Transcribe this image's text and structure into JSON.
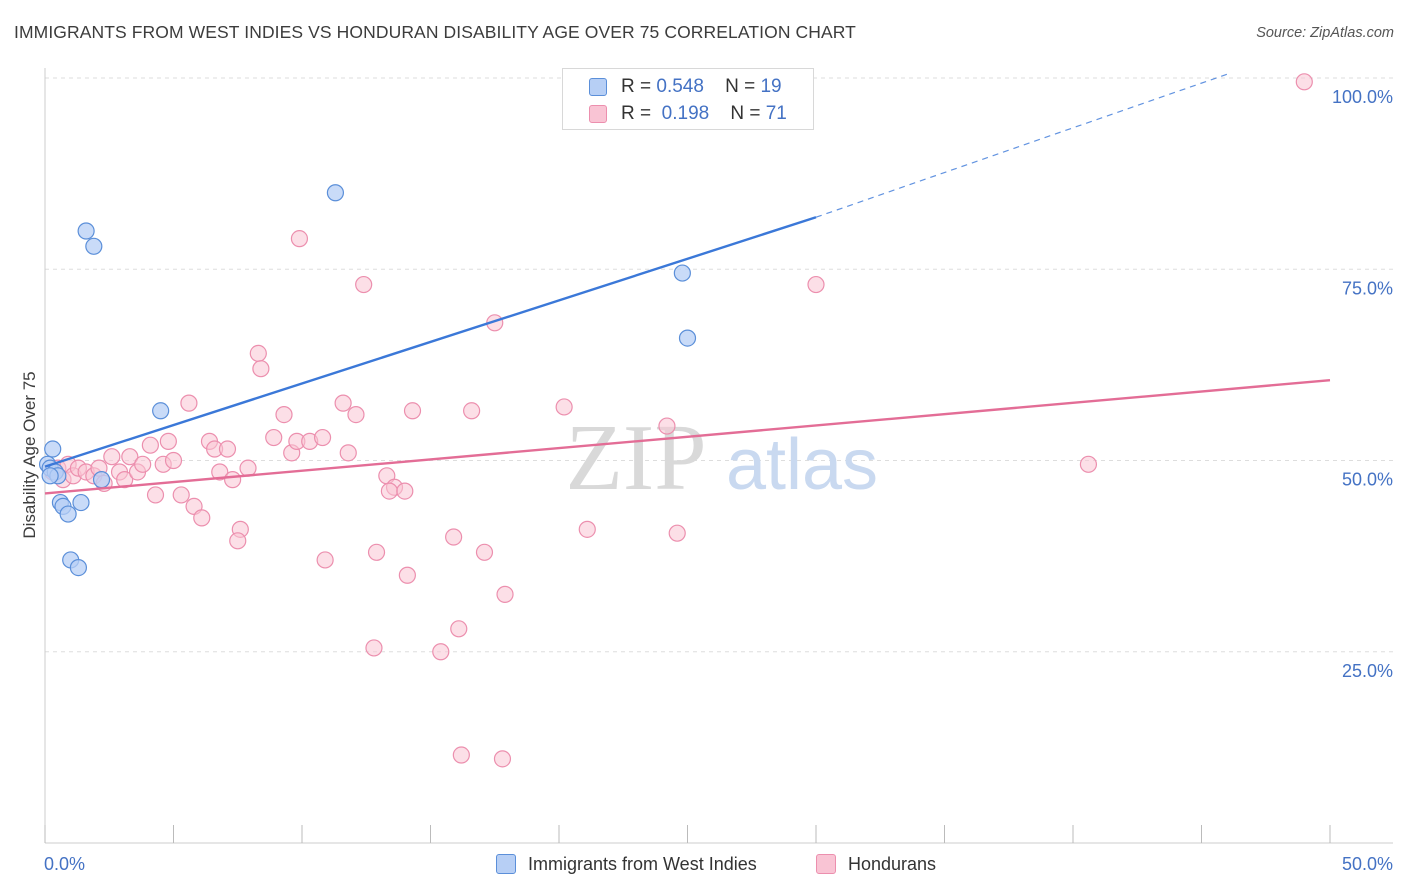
{
  "title": "IMMIGRANTS FROM WEST INDIES VS HONDURAN DISABILITY AGE OVER 75 CORRELATION CHART",
  "source": "Source: ZipAtlas.com",
  "watermark": {
    "zip": "ZIP",
    "atlas": "atlas"
  },
  "legend_top": {
    "r_label": "R =",
    "n_label": "N =",
    "rows": [
      {
        "r": "0.548",
        "n": "19"
      },
      {
        "r": "0.198",
        "n": "71"
      }
    ]
  },
  "colors": {
    "blue_fill": "#b7cff5",
    "blue_stroke": "#5b8fd9",
    "blue_line": "#3b78d8",
    "pink_fill": "#f9c4d4",
    "pink_stroke": "#ec8fae",
    "pink_line": "#e36d96",
    "grid": "#dddddd",
    "axis_text": "#4472c4"
  },
  "chart_data": {
    "type": "scatter",
    "title": "IMMIGRANTS FROM WEST INDIES VS HONDURAN DISABILITY AGE OVER 75 CORRELATION CHART",
    "xlabel": "",
    "ylabel": "Disability Age Over 75",
    "xlim": [
      0,
      50
    ],
    "ylim": [
      0,
      102
    ],
    "x_tick_labels": [
      "0.0%",
      "50.0%"
    ],
    "y_ticks": [
      25,
      50,
      75,
      100
    ],
    "y_tick_labels": [
      "25.0%",
      "50.0%",
      "75.0%",
      "100.0%"
    ],
    "grid": true,
    "legend_position": "bottom",
    "series": [
      {
        "name": "Immigrants from West Indies",
        "r": 0.548,
        "n": 19,
        "points": [
          [
            0.1,
            49.5
          ],
          [
            0.2,
            49.0
          ],
          [
            0.3,
            51.5
          ],
          [
            0.4,
            48.5
          ],
          [
            0.5,
            48.0
          ],
          [
            0.6,
            44.5
          ],
          [
            0.7,
            44.0
          ],
          [
            0.9,
            43.0
          ],
          [
            1.0,
            37.0
          ],
          [
            1.4,
            44.5
          ],
          [
            1.3,
            36.0
          ],
          [
            1.6,
            80.0
          ],
          [
            1.9,
            78.0
          ],
          [
            2.2,
            47.5
          ],
          [
            4.5,
            56.5
          ],
          [
            11.3,
            85.0
          ],
          [
            24.8,
            74.5
          ],
          [
            25.0,
            66.0
          ],
          [
            0.2,
            48.0
          ]
        ],
        "trend": {
          "x0": 0,
          "y0": 49.2,
          "x1": 30,
          "y1": 81.8,
          "dash_to_x": 46,
          "dash_to_y": 100.5
        }
      },
      {
        "name": "Hondurans",
        "r": 0.198,
        "n": 71,
        "points": [
          [
            0.3,
            48.5
          ],
          [
            0.5,
            49.0
          ],
          [
            0.7,
            47.5
          ],
          [
            0.9,
            49.5
          ],
          [
            1.1,
            48.0
          ],
          [
            1.3,
            49.0
          ],
          [
            1.6,
            48.5
          ],
          [
            1.9,
            48.0
          ],
          [
            2.1,
            49.0
          ],
          [
            2.3,
            47.0
          ],
          [
            2.6,
            50.5
          ],
          [
            2.9,
            48.5
          ],
          [
            3.1,
            47.5
          ],
          [
            3.3,
            50.5
          ],
          [
            3.6,
            48.5
          ],
          [
            3.8,
            49.5
          ],
          [
            4.1,
            52.0
          ],
          [
            4.3,
            45.5
          ],
          [
            4.6,
            49.5
          ],
          [
            4.8,
            52.5
          ],
          [
            5.0,
            50.0
          ],
          [
            5.3,
            45.5
          ],
          [
            5.6,
            57.5
          ],
          [
            5.8,
            44.0
          ],
          [
            6.1,
            42.5
          ],
          [
            6.4,
            52.5
          ],
          [
            6.6,
            51.5
          ],
          [
            6.8,
            48.5
          ],
          [
            7.1,
            51.5
          ],
          [
            7.3,
            47.5
          ],
          [
            7.6,
            41.0
          ],
          [
            7.5,
            39.5
          ],
          [
            7.9,
            49.0
          ],
          [
            8.3,
            64.0
          ],
          [
            8.4,
            62.0
          ],
          [
            8.9,
            53.0
          ],
          [
            9.3,
            56.0
          ],
          [
            9.6,
            51.0
          ],
          [
            9.8,
            52.5
          ],
          [
            9.9,
            79.0
          ],
          [
            10.3,
            52.5
          ],
          [
            10.8,
            53.0
          ],
          [
            10.9,
            37.0
          ],
          [
            11.6,
            57.5
          ],
          [
            11.8,
            51.0
          ],
          [
            12.1,
            56.0
          ],
          [
            12.4,
            73.0
          ],
          [
            12.8,
            25.5
          ],
          [
            12.9,
            38.0
          ],
          [
            13.3,
            48.0
          ],
          [
            13.6,
            46.5
          ],
          [
            13.4,
            46.0
          ],
          [
            14.0,
            46.0
          ],
          [
            14.1,
            35.0
          ],
          [
            14.3,
            56.5
          ],
          [
            15.4,
            25.0
          ],
          [
            15.9,
            40.0
          ],
          [
            16.1,
            28.0
          ],
          [
            16.2,
            11.5
          ],
          [
            16.6,
            56.5
          ],
          [
            17.1,
            38.0
          ],
          [
            17.5,
            68.0
          ],
          [
            17.8,
            11.0
          ],
          [
            17.9,
            32.5
          ],
          [
            20.2,
            57.0
          ],
          [
            21.1,
            41.0
          ],
          [
            24.2,
            54.5
          ],
          [
            24.6,
            40.5
          ],
          [
            30.0,
            73.0
          ],
          [
            40.6,
            49.5
          ],
          [
            49.0,
            99.5
          ]
        ],
        "trend": {
          "x0": 0,
          "y0": 45.7,
          "x1": 50,
          "y1": 60.5
        }
      }
    ]
  }
}
